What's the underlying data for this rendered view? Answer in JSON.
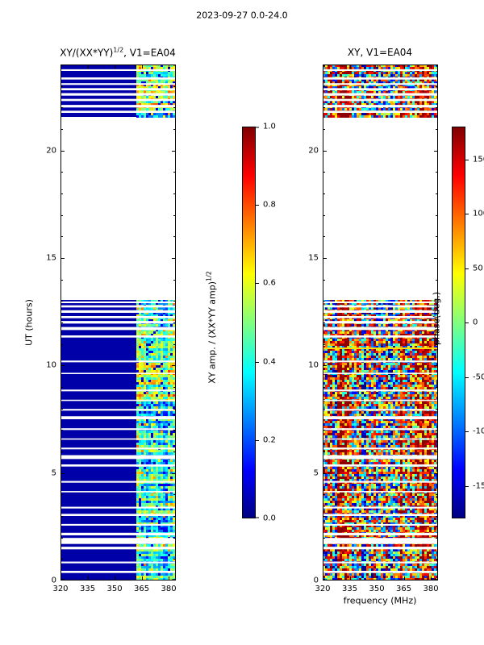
{
  "figure": {
    "suptitle": "2023-09-27 0.0-24.0"
  },
  "left_panel": {
    "title_base": "XY/(XX*YY)",
    "title_sup": "1/2",
    "title_rest": ", V1=EA04",
    "ylabel": "UT (hours)",
    "xticks": [
      "320",
      "335",
      "350",
      "365",
      "380"
    ],
    "yticks": [
      "0",
      "5",
      "10",
      "15",
      "20"
    ]
  },
  "right_panel": {
    "title": "XY, V1=EA04",
    "xlabel": "frequency (MHz)",
    "xticks": [
      "320",
      "335",
      "350",
      "365",
      "380"
    ],
    "yticks": [
      "0",
      "5",
      "10",
      "15",
      "20"
    ]
  },
  "left_colorbar": {
    "label_base": "XY amp. / (XX*YY amp)",
    "label_sup": "1/2",
    "ticks": [
      "0.0",
      "0.2",
      "0.4",
      "0.6",
      "0.8",
      "1.0"
    ]
  },
  "right_colorbar": {
    "label": "phase(deg.)",
    "ticks": [
      "-150",
      "-100",
      "-50",
      "0",
      "50",
      "100",
      "150"
    ]
  },
  "chart_data": [
    {
      "type": "heatmap",
      "title": "XY/(XX*YY)^(1/2), V1=EA04",
      "xlabel": "frequency (MHz)",
      "ylabel": "UT (hours)",
      "xlim": [
        320,
        384
      ],
      "ylim": [
        0,
        24
      ],
      "xticks": [
        320,
        335,
        350,
        365,
        380
      ],
      "yticks": [
        0,
        5,
        10,
        15,
        20
      ],
      "colormap": "jet",
      "colorbar": {
        "label": "XY amp. / (XX*YY amp)^(1/2)",
        "range": [
          0,
          1
        ],
        "ticks": [
          0,
          0.2,
          0.4,
          0.6,
          0.8,
          1.0
        ]
      },
      "data_intervals_ut": [
        [
          0,
          13.05
        ],
        [
          21.55,
          24
        ]
      ],
      "blank_interval_ut": [
        13.05,
        21.55
      ],
      "background_amp": 0.04,
      "active_band_mhz": [
        362,
        384
      ],
      "band_amp_range": [
        0.12,
        0.75
      ],
      "bright_rows_ut": [
        [
          8.4,
          11.6
        ],
        [
          21.8,
          24
        ]
      ],
      "gap_times_ut": [
        [
          0.35,
          0.1
        ],
        [
          0.8,
          0.08
        ],
        [
          1.45,
          0.12
        ],
        [
          1.7,
          0.28
        ],
        [
          2.1,
          0.12
        ],
        [
          2.55,
          0.08
        ],
        [
          3.0,
          0.1
        ],
        [
          3.35,
          0.08
        ],
        [
          4.1,
          0.06
        ],
        [
          4.55,
          0.08
        ],
        [
          5.3,
          0.1
        ],
        [
          5.65,
          0.18
        ],
        [
          6.1,
          0.08
        ],
        [
          6.55,
          0.06
        ],
        [
          7.0,
          0.08
        ],
        [
          7.5,
          0.14
        ],
        [
          7.9,
          0.08
        ],
        [
          8.35,
          0.06
        ],
        [
          8.8,
          0.08
        ],
        [
          9.6,
          0.06
        ],
        [
          10.15,
          0.08
        ],
        [
          11.3,
          0.1
        ],
        [
          11.65,
          0.14
        ],
        [
          11.95,
          0.12
        ],
        [
          12.2,
          0.1
        ],
        [
          12.45,
          0.12
        ],
        [
          12.7,
          0.1
        ],
        [
          12.9,
          0.08
        ],
        [
          21.75,
          0.1
        ],
        [
          22.0,
          0.12
        ],
        [
          22.3,
          0.1
        ],
        [
          22.55,
          0.12
        ],
        [
          22.8,
          0.1
        ],
        [
          23.05,
          0.08
        ],
        [
          23.3,
          0.1
        ],
        [
          23.7,
          0.08
        ]
      ]
    },
    {
      "type": "heatmap",
      "title": "XY, V1=EA04",
      "xlabel": "frequency (MHz)",
      "ylabel": "UT (hours)",
      "xlim": [
        320,
        384
      ],
      "ylim": [
        0,
        24
      ],
      "xticks": [
        320,
        335,
        350,
        365,
        380
      ],
      "yticks": [
        0,
        5,
        10,
        15,
        20
      ],
      "colormap": "jet",
      "colorbar": {
        "label": "phase(deg.)",
        "range": [
          -180,
          180
        ],
        "ticks": [
          -150,
          -100,
          -50,
          0,
          50,
          100,
          150
        ]
      },
      "phase_range_deg": [
        -180,
        180
      ],
      "data_intervals_ut": [
        [
          0,
          13.05
        ],
        [
          21.55,
          24
        ]
      ],
      "blank_interval_ut": [
        13.05,
        21.55
      ],
      "hot_column_bands_mhz": [
        [
          328,
          337
        ],
        [
          344,
          352
        ],
        [
          362,
          382
        ]
      ],
      "bright_line_ut": 10.85,
      "gap_times_ut": [
        [
          0.35,
          0.1
        ],
        [
          0.8,
          0.08
        ],
        [
          1.45,
          0.12
        ],
        [
          1.7,
          0.28
        ],
        [
          2.1,
          0.12
        ],
        [
          2.55,
          0.08
        ],
        [
          3.0,
          0.1
        ],
        [
          3.35,
          0.08
        ],
        [
          4.1,
          0.06
        ],
        [
          4.55,
          0.08
        ],
        [
          5.3,
          0.1
        ],
        [
          5.65,
          0.18
        ],
        [
          6.1,
          0.08
        ],
        [
          6.55,
          0.06
        ],
        [
          7.0,
          0.08
        ],
        [
          7.5,
          0.14
        ],
        [
          7.9,
          0.08
        ],
        [
          8.35,
          0.06
        ],
        [
          8.8,
          0.08
        ],
        [
          9.6,
          0.06
        ],
        [
          10.15,
          0.08
        ],
        [
          11.3,
          0.1
        ],
        [
          11.65,
          0.14
        ],
        [
          11.95,
          0.12
        ],
        [
          12.2,
          0.1
        ],
        [
          12.45,
          0.12
        ],
        [
          12.7,
          0.1
        ],
        [
          12.9,
          0.08
        ],
        [
          21.75,
          0.1
        ],
        [
          22.0,
          0.12
        ],
        [
          22.3,
          0.1
        ],
        [
          22.55,
          0.12
        ],
        [
          22.8,
          0.1
        ],
        [
          23.05,
          0.08
        ],
        [
          23.3,
          0.1
        ],
        [
          23.7,
          0.08
        ]
      ]
    }
  ]
}
